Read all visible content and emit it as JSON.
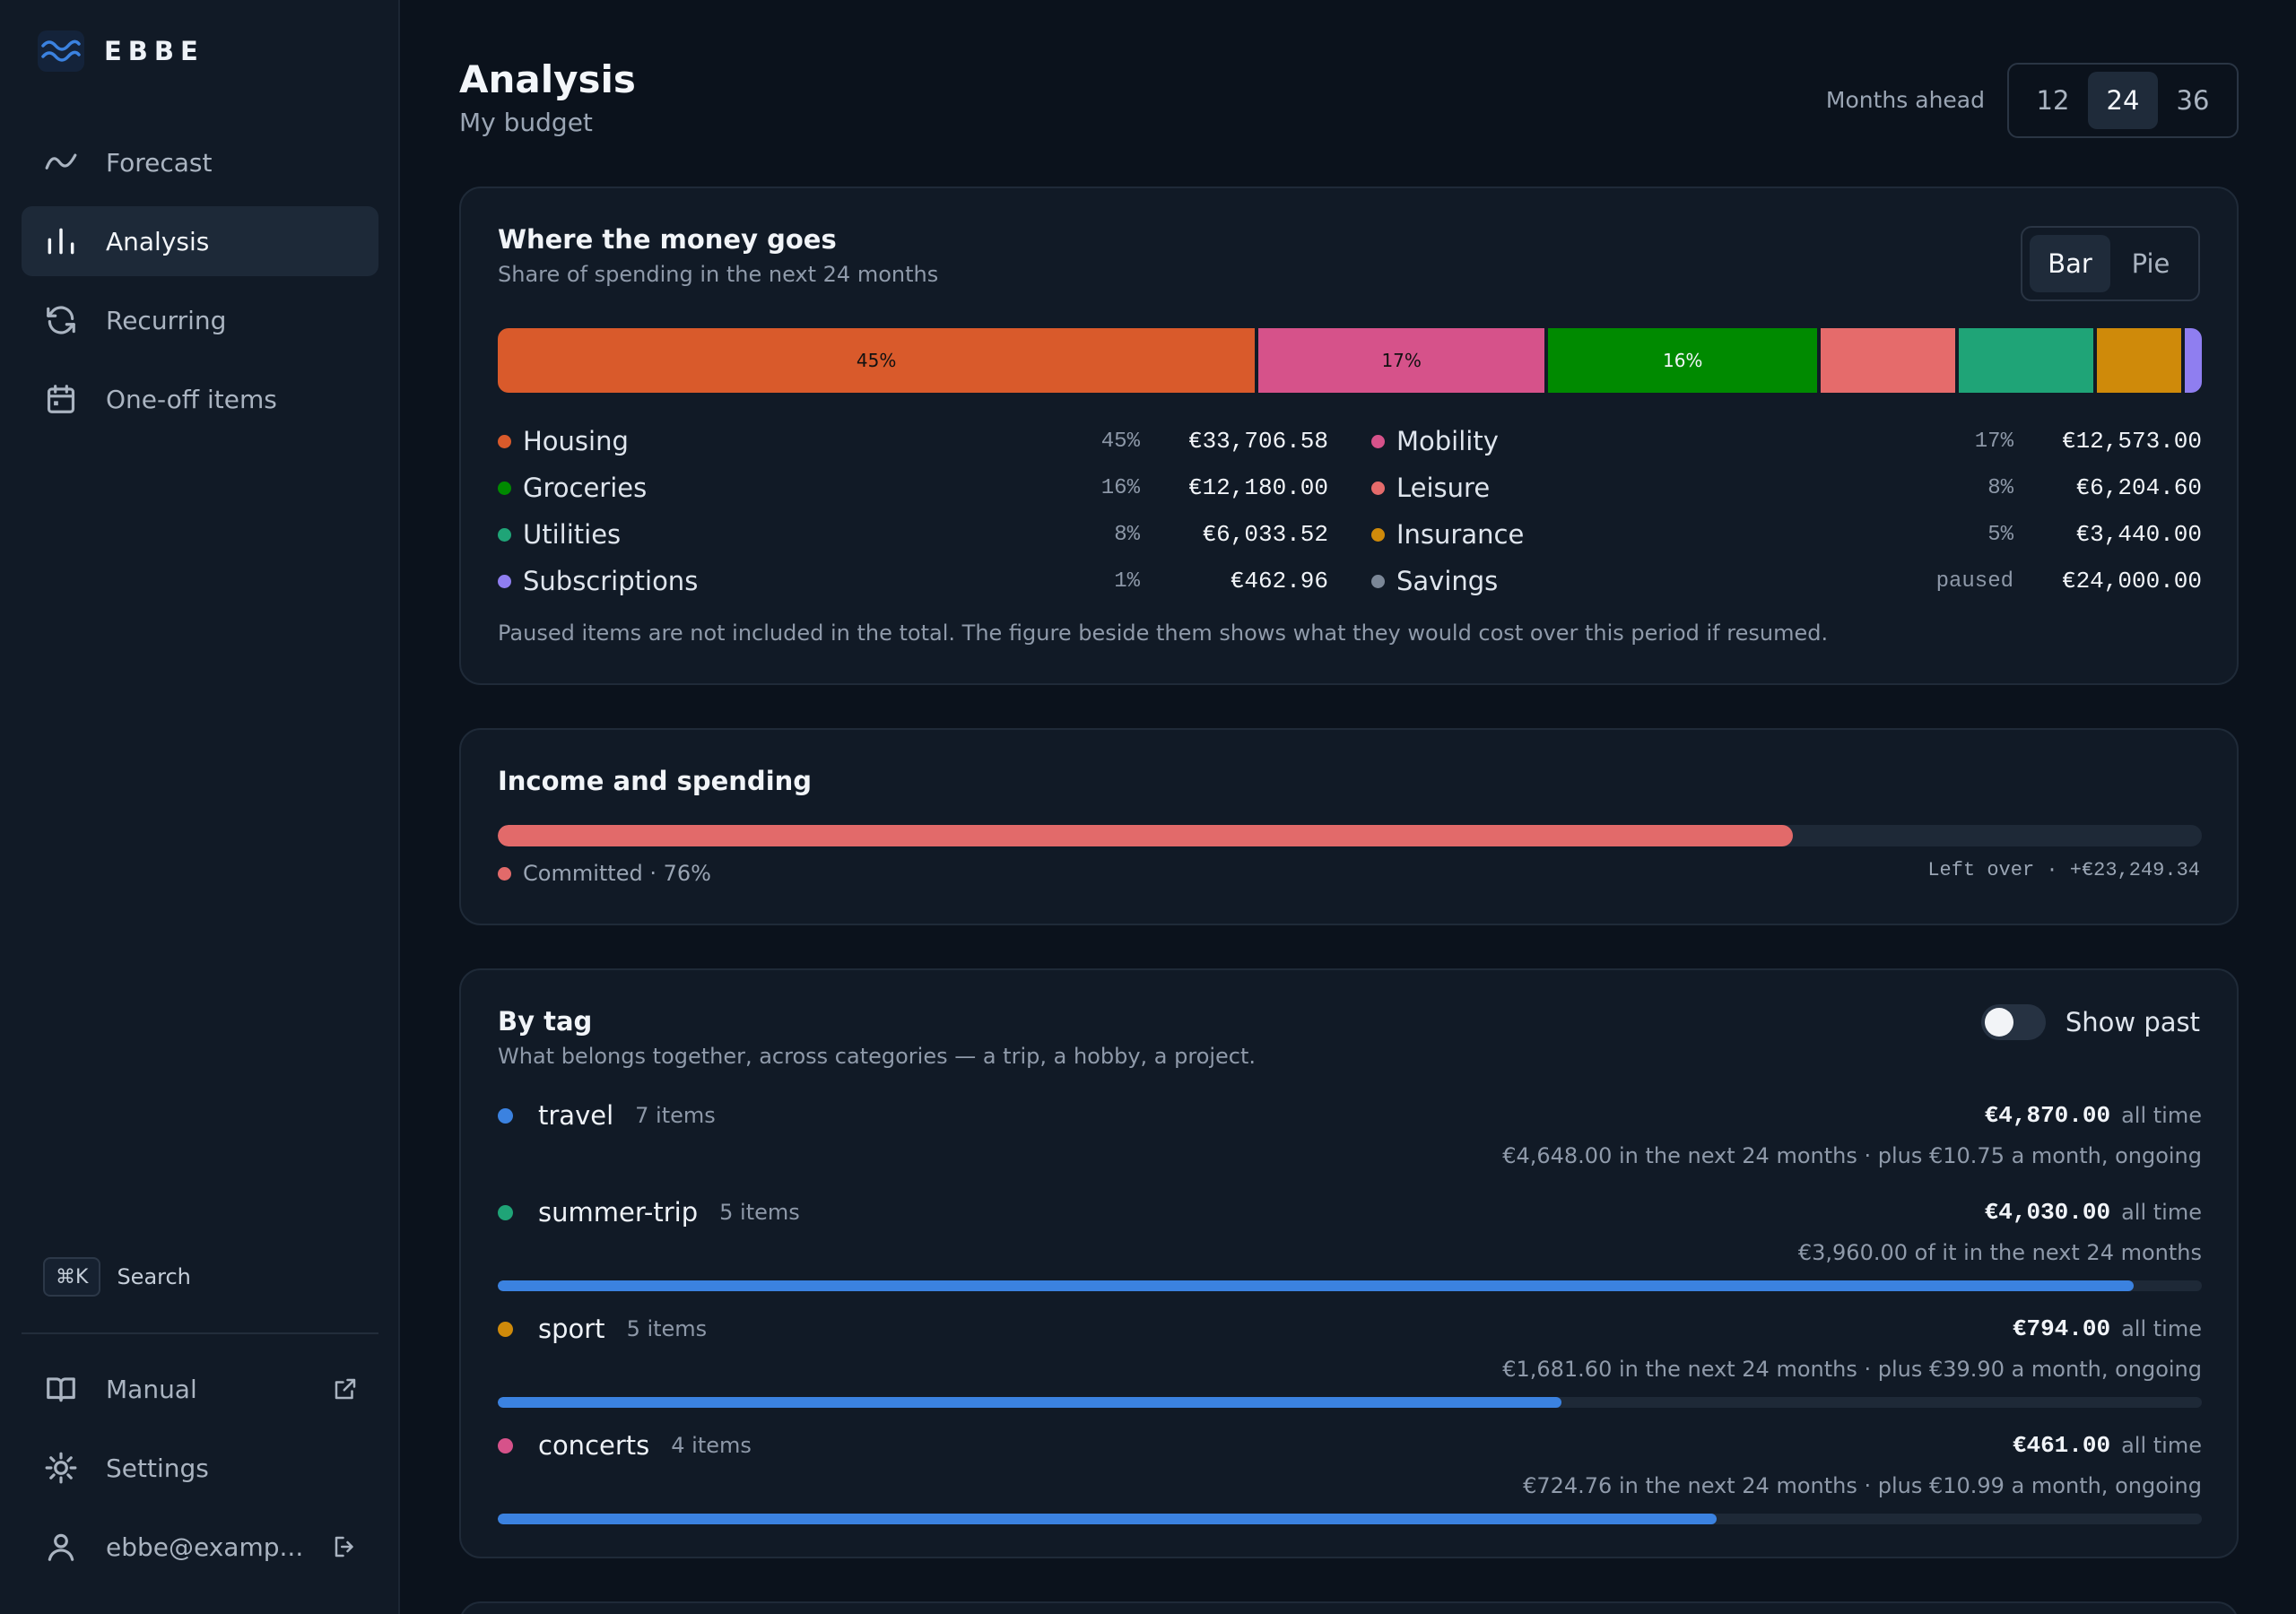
{
  "app": {
    "brand": "EBBE"
  },
  "sidebar": {
    "items": [
      {
        "label": "Forecast",
        "icon": "trend-line-icon",
        "active": false
      },
      {
        "label": "Analysis",
        "icon": "bar-chart-icon",
        "active": true
      },
      {
        "label": "Recurring",
        "icon": "refresh-icon",
        "active": false
      },
      {
        "label": "One-off items",
        "icon": "calendar-icon",
        "active": false
      }
    ],
    "search": {
      "shortcut": "⌘K",
      "label": "Search"
    },
    "bottom": [
      {
        "label": "Manual",
        "icon": "book-icon",
        "trail_icon": "external-link-icon"
      },
      {
        "label": "Settings",
        "icon": "gear-icon"
      },
      {
        "label": "ebbe@examp...",
        "icon": "user-icon",
        "trail_icon": "logout-icon"
      }
    ]
  },
  "header": {
    "title": "Analysis",
    "subtitle": "My budget",
    "months_label": "Months ahead",
    "months_options": [
      "12",
      "24",
      "36"
    ],
    "months_selected": "24"
  },
  "money": {
    "title": "Where the money goes",
    "subtitle": "Share of spending in the next 24 months",
    "view_options": [
      "Bar",
      "Pie"
    ],
    "view_selected": "Bar",
    "segments": [
      {
        "name": "Housing",
        "pct_value": 45,
        "label": "45%",
        "color": "#d95a2b"
      },
      {
        "name": "Mobility",
        "pct_value": 17,
        "label": "17%",
        "color": "#d6528a"
      },
      {
        "name": "Groceries",
        "pct_value": 16,
        "label": "16%",
        "color": "#008a00"
      },
      {
        "name": "Leisure",
        "pct_value": 8,
        "label": "",
        "color": "#e56b6b"
      },
      {
        "name": "Utilities",
        "pct_value": 8,
        "label": "",
        "color": "#1fa477"
      },
      {
        "name": "Insurance",
        "pct_value": 5,
        "label": "",
        "color": "#cf8a0a"
      },
      {
        "name": "Subscriptions",
        "pct_value": 1,
        "label": "",
        "color": "#8f7ef0"
      }
    ],
    "legend": [
      {
        "name": "Housing",
        "pct": "45%",
        "amount": "€33,706.58",
        "color": "#d95a2b"
      },
      {
        "name": "Mobility",
        "pct": "17%",
        "amount": "€12,573.00",
        "color": "#d6528a"
      },
      {
        "name": "Groceries",
        "pct": "16%",
        "amount": "€12,180.00",
        "color": "#008a00"
      },
      {
        "name": "Leisure",
        "pct": "8%",
        "amount": "€6,204.60",
        "color": "#e56b6b"
      },
      {
        "name": "Utilities",
        "pct": "8%",
        "amount": "€6,033.52",
        "color": "#1fa477"
      },
      {
        "name": "Insurance",
        "pct": "5%",
        "amount": "€3,440.00",
        "color": "#cf8a0a"
      },
      {
        "name": "Subscriptions",
        "pct": "1%",
        "amount": "€462.96",
        "color": "#8f7ef0"
      },
      {
        "name": "Savings",
        "pct": "paused",
        "amount": "€24,000.00",
        "color": "#7b8797"
      }
    ],
    "note": "Paused items are not included in the total. The figure beside them shows what they would cost over this period if resumed."
  },
  "income": {
    "title": "Income and spending",
    "committed_label": "Committed · 76%",
    "committed_fraction": 0.76,
    "committed_color": "#e26a6a",
    "left_over": "Left over · +€23,249.34"
  },
  "tags": {
    "title": "By tag",
    "subtitle": "What belongs together, across categories — a trip, a hobby, a project.",
    "show_past_label": "Show past",
    "show_past": false,
    "all_time_label": "all time",
    "items": [
      {
        "name": "travel",
        "count": "7 items",
        "amount": "€4,870.00",
        "detail": "€4,648.00 in the next 24 months · plus €10.75 a month, ongoing",
        "color": "#3b82e0",
        "bar": null
      },
      {
        "name": "summer-trip",
        "count": "5 items",
        "amount": "€4,030.00",
        "detail": "€3,960.00 of it in the next 24 months",
        "color": "#1fa477",
        "bar": 0.96
      },
      {
        "name": "sport",
        "count": "5 items",
        "amount": "€794.00",
        "detail": "€1,681.60 in the next 24 months · plus €39.90 a month, ongoing",
        "color": "#cf8a0a",
        "bar": 0.624
      },
      {
        "name": "concerts",
        "count": "4 items",
        "amount": "€461.00",
        "detail": "€724.76 in the next 24 months · plus €10.99 a month, ongoing",
        "color": "#d6528a",
        "bar": 0.715
      }
    ]
  }
}
